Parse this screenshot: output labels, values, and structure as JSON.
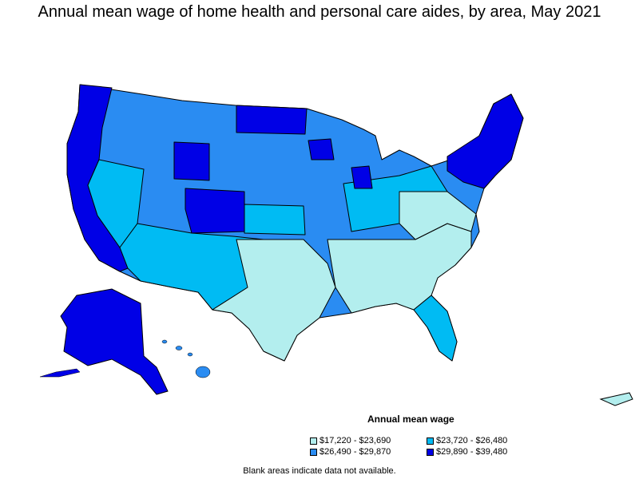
{
  "title": "Annual mean wage of home health and personal care aides, by area, May 2021",
  "legend": {
    "title": "Annual mean wage",
    "items": [
      {
        "label": "$17,220 - $23,690",
        "color": "#b3eeee"
      },
      {
        "label": "$23,720 - $26,480",
        "color": "#00bbf3"
      },
      {
        "label": "$26,490 - $29,870",
        "color": "#2a8cf2"
      },
      {
        "label": "$29,890 - $39,480",
        "color": "#0000e6"
      }
    ]
  },
  "footnote": "Blank areas indicate data not available.",
  "map_colors": {
    "border": "#000000",
    "background": "#ffffff"
  }
}
